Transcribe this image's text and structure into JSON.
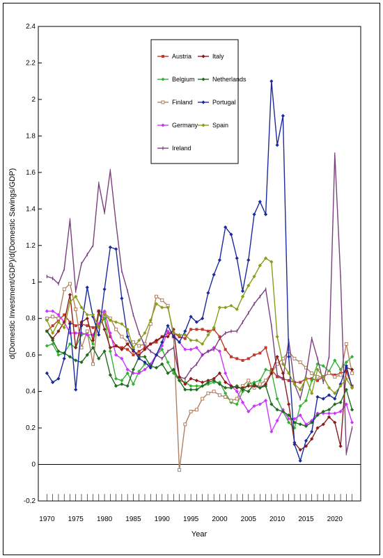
{
  "chart_data": {
    "type": "line",
    "xlabel": "Year",
    "ylabel": "d(Domestic Investment/GDP)/d(Domestic Savings/GDP)",
    "xlim": [
      1968.5,
      2024.5
    ],
    "ylim": [
      -0.2,
      2.4
    ],
    "yticks": [
      -0.2,
      0,
      0.2,
      0.4,
      0.6,
      0.8,
      1,
      1.2,
      1.4,
      1.6,
      1.8,
      2,
      2.2,
      2.4
    ],
    "yticklabels": [
      "-0.2",
      "0",
      "0.2",
      "0.4",
      "0.6",
      "0.8",
      "1",
      "1.2",
      "1.4",
      "1.6",
      "1.8",
      "2",
      "2.2",
      "2.4"
    ],
    "xticks": [
      1970,
      1975,
      1980,
      1985,
      1990,
      1995,
      2000,
      2005,
      2010,
      2015,
      2020
    ],
    "xticklabels": [
      "1970",
      "1975",
      "1980",
      "1985",
      "1990",
      "1995",
      "2000",
      "2005",
      "2010",
      "2015",
      "2020"
    ],
    "zero_line": true,
    "grid": false,
    "legend_position": "top-center",
    "x": [
      1970,
      1971,
      1972,
      1973,
      1974,
      1975,
      1976,
      1977,
      1978,
      1979,
      1980,
      1981,
      1982,
      1983,
      1984,
      1985,
      1986,
      1987,
      1988,
      1989,
      1990,
      1991,
      1992,
      1993,
      1994,
      1995,
      1996,
      1997,
      1998,
      1999,
      2000,
      2001,
      2002,
      2003,
      2004,
      2005,
      2006,
      2007,
      2008,
      2009,
      2010,
      2011,
      2012,
      2013,
      2014,
      2015,
      2016,
      2017,
      2018,
      2019,
      2020,
      2021,
      2022,
      2023
    ],
    "series": [
      {
        "name": "Austria",
        "color": "#c0392b",
        "marker": "square",
        "values": [
          0.73,
          0.76,
          0.79,
          0.82,
          0.78,
          0.76,
          0.77,
          0.76,
          0.75,
          0.76,
          0.8,
          0.7,
          0.65,
          0.64,
          0.63,
          0.6,
          0.62,
          0.64,
          0.66,
          0.67,
          0.7,
          0.72,
          0.72,
          0.7,
          0.69,
          0.74,
          0.74,
          0.74,
          0.73,
          0.74,
          0.7,
          0.63,
          0.59,
          0.58,
          0.57,
          0.58,
          0.6,
          0.61,
          0.64,
          0.52,
          0.48,
          0.47,
          0.46,
          0.45,
          0.45,
          0.47,
          0.47,
          0.46,
          0.48,
          0.5,
          0.49,
          0.5,
          0.51,
          0.43
        ]
      },
      {
        "name": "Belgium",
        "color": "#33b233",
        "marker": "diamond",
        "values": [
          0.65,
          0.66,
          0.6,
          0.61,
          0.66,
          0.64,
          0.71,
          0.72,
          0.66,
          0.82,
          0.8,
          0.62,
          0.47,
          0.46,
          0.5,
          0.44,
          0.51,
          0.55,
          0.55,
          0.6,
          0.63,
          0.56,
          0.5,
          0.46,
          0.45,
          0.43,
          0.43,
          0.43,
          0.44,
          0.45,
          0.45,
          0.39,
          0.34,
          0.33,
          0.4,
          0.44,
          0.45,
          0.46,
          0.52,
          0.51,
          0.36,
          0.29,
          0.23,
          0.2,
          0.32,
          0.35,
          0.46,
          0.55,
          0.54,
          0.51,
          0.57,
          0.52,
          0.56,
          0.59
        ]
      },
      {
        "name": "Finland",
        "color": "#b08060",
        "marker": "square-open",
        "values": [
          0.8,
          0.81,
          0.8,
          0.96,
          0.99,
          0.85,
          0.64,
          0.73,
          0.55,
          0.84,
          0.83,
          0.8,
          0.74,
          0.7,
          0.67,
          0.67,
          0.65,
          0.66,
          0.77,
          0.92,
          0.9,
          0.87,
          0.7,
          -0.03,
          0.22,
          0.29,
          0.3,
          0.36,
          0.39,
          0.4,
          0.38,
          0.37,
          0.35,
          0.36,
          0.43,
          0.46,
          0.42,
          0.44,
          0.46,
          0.5,
          0.55,
          0.58,
          0.62,
          0.58,
          0.56,
          0.53,
          0.5,
          0.48,
          0.48,
          0.5,
          0.48,
          0.49,
          0.66,
          0.5
        ]
      },
      {
        "name": "Germany",
        "color": "#cc33ff",
        "marker": "diamond",
        "values": [
          0.84,
          0.84,
          0.82,
          0.78,
          0.72,
          0.72,
          0.72,
          0.71,
          0.71,
          0.77,
          0.84,
          0.72,
          0.6,
          0.58,
          0.52,
          0.5,
          0.5,
          0.52,
          0.55,
          0.6,
          0.65,
          0.73,
          0.71,
          0.67,
          0.63,
          0.63,
          0.64,
          0.6,
          0.62,
          0.64,
          0.62,
          0.5,
          0.43,
          0.4,
          0.34,
          0.29,
          0.32,
          0.33,
          0.35,
          0.18,
          0.24,
          0.3,
          0.25,
          0.25,
          0.27,
          0.22,
          0.24,
          0.28,
          0.28,
          0.28,
          0.28,
          0.29,
          0.33,
          0.23
        ]
      },
      {
        "name": "Ireland",
        "color": "#7b3f7f",
        "marker": "tick",
        "values": [
          1.03,
          1.02,
          0.99,
          1.07,
          1.34,
          0.95,
          1.1,
          1.15,
          1.2,
          1.54,
          1.38,
          1.61,
          1.32,
          1.06,
          0.95,
          0.82,
          0.72,
          0.65,
          0.62,
          0.6,
          0.58,
          0.62,
          0.64,
          0.48,
          0.47,
          0.52,
          0.55,
          0.6,
          0.62,
          0.63,
          0.69,
          0.72,
          0.73,
          0.73,
          0.78,
          0.83,
          0.88,
          0.92,
          0.96,
          0.76,
          0.49,
          0.47,
          0.68,
          0.44,
          0.36,
          0.49,
          0.69,
          0.58,
          0.45,
          0.59,
          1.7,
          1.03,
          0.06,
          0.2
        ]
      },
      {
        "name": "Italy",
        "color": "#8b1a1a",
        "marker": "diamond",
        "values": [
          0.73,
          0.69,
          0.73,
          0.78,
          0.93,
          0.64,
          0.78,
          0.8,
          0.68,
          0.84,
          0.74,
          0.64,
          0.65,
          0.63,
          0.66,
          0.62,
          0.6,
          0.63,
          0.66,
          0.68,
          0.7,
          0.7,
          0.74,
          0.48,
          0.44,
          0.47,
          0.46,
          0.45,
          0.46,
          0.47,
          0.5,
          0.45,
          0.43,
          0.42,
          0.42,
          0.43,
          0.43,
          0.42,
          0.44,
          0.5,
          0.59,
          0.5,
          0.33,
          0.12,
          0.08,
          0.1,
          0.14,
          0.2,
          0.22,
          0.26,
          0.23,
          0.1,
          0.53,
          0.52
        ]
      },
      {
        "name": "Netherlands",
        "color": "#1f6b1f",
        "marker": "diamond",
        "values": [
          0.73,
          0.68,
          0.62,
          0.61,
          0.59,
          0.57,
          0.56,
          0.6,
          0.64,
          0.58,
          0.62,
          0.49,
          0.43,
          0.44,
          0.43,
          0.52,
          0.59,
          0.59,
          0.54,
          0.53,
          0.55,
          0.5,
          0.52,
          0.46,
          0.41,
          0.41,
          0.41,
          0.43,
          0.45,
          0.46,
          0.44,
          0.42,
          0.42,
          0.43,
          0.41,
          0.4,
          0.44,
          0.42,
          0.43,
          0.33,
          0.3,
          0.29,
          0.27,
          0.23,
          0.22,
          0.21,
          0.23,
          0.27,
          0.29,
          0.3,
          0.33,
          0.34,
          0.41,
          0.3
        ]
      },
      {
        "name": "Portugal",
        "color": "#1a2a9c",
        "marker": "diamond",
        "values": [
          0.5,
          0.45,
          0.47,
          0.58,
          0.77,
          0.41,
          0.76,
          0.97,
          0.81,
          0.71,
          0.96,
          1.19,
          1.18,
          0.91,
          0.7,
          0.63,
          0.58,
          0.56,
          0.53,
          0.6,
          0.67,
          0.76,
          0.7,
          0.67,
          0.73,
          0.81,
          0.78,
          0.8,
          0.94,
          1.04,
          1.12,
          1.3,
          1.26,
          1.13,
          0.95,
          1.12,
          1.37,
          1.44,
          1.37,
          2.1,
          1.75,
          1.91,
          0.59,
          0.11,
          0.02,
          0.13,
          0.18,
          0.37,
          0.36,
          0.38,
          0.36,
          0.44,
          0.54,
          0.42
        ]
      },
      {
        "name": "Spain",
        "color": "#8b9b1a",
        "marker": "diamond",
        "values": [
          0.79,
          0.72,
          0.78,
          0.75,
          0.89,
          0.92,
          0.86,
          0.82,
          0.82,
          0.75,
          0.82,
          0.79,
          0.78,
          0.77,
          0.74,
          0.64,
          0.68,
          0.72,
          0.79,
          0.88,
          0.86,
          0.86,
          0.72,
          0.71,
          0.71,
          0.68,
          0.68,
          0.66,
          0.71,
          0.75,
          0.86,
          0.86,
          0.87,
          0.85,
          0.92,
          0.98,
          1.03,
          1.09,
          1.13,
          1.11,
          0.7,
          0.55,
          0.5,
          0.44,
          0.41,
          0.47,
          0.39,
          0.52,
          0.48,
          0.42,
          0.39,
          0.43,
          0.47,
          0.42
        ]
      }
    ]
  }
}
